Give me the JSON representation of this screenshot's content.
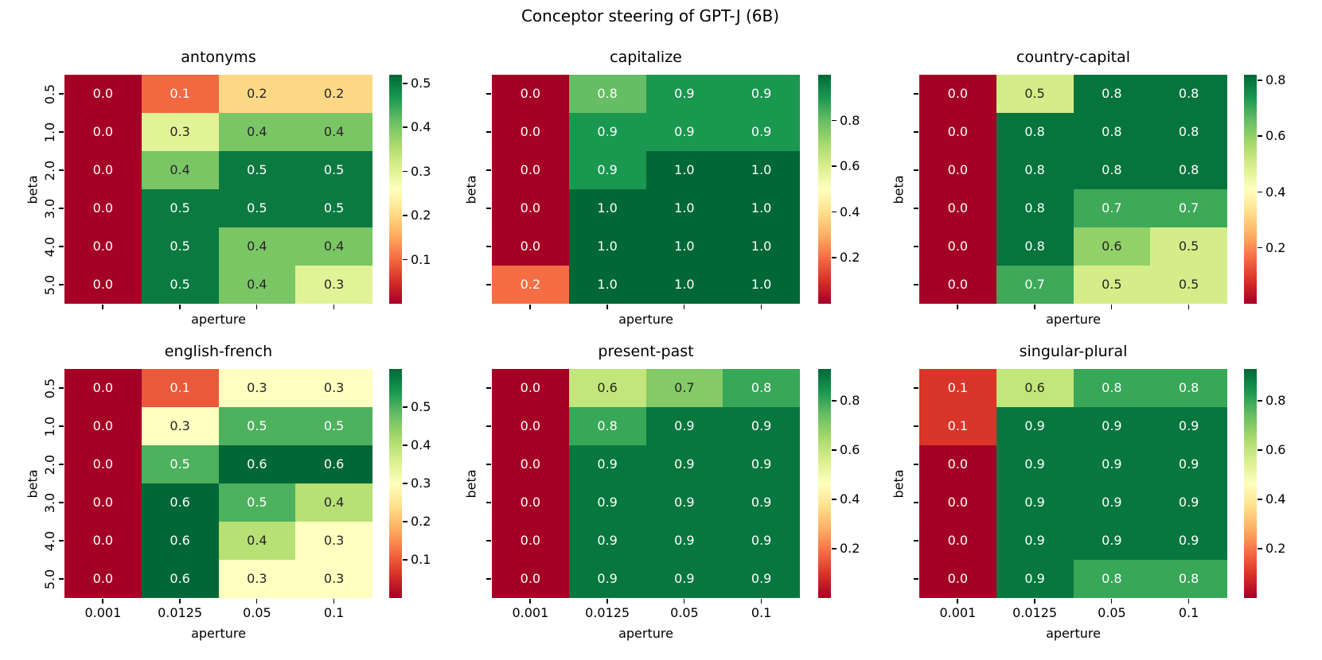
{
  "figure": {
    "title": "Conceptor steering of GPT-J (6B)"
  },
  "chart_data": [
    {
      "type": "heatmap",
      "title": "antonyms",
      "xlabel": "aperture",
      "ylabel": "beta",
      "x_ticks": [
        "0.001",
        "0.0125",
        "0.05",
        "0.1"
      ],
      "y_ticks": [
        "0.5",
        "1.0",
        "2.0",
        "3.0",
        "4.0",
        "5.0"
      ],
      "values": [
        [
          0.0,
          0.1,
          0.2,
          0.2
        ],
        [
          0.0,
          0.3,
          0.4,
          0.4
        ],
        [
          0.0,
          0.4,
          0.5,
          0.5
        ],
        [
          0.0,
          0.5,
          0.5,
          0.5
        ],
        [
          0.0,
          0.5,
          0.4,
          0.4
        ],
        [
          0.0,
          0.5,
          0.4,
          0.3
        ]
      ],
      "vmin": 0.0,
      "vmax": 0.52,
      "colorbar_ticks": [
        0.5,
        0.4,
        0.3,
        0.2,
        0.1
      ],
      "colormap": "RdYlGn"
    },
    {
      "type": "heatmap",
      "title": "capitalize",
      "xlabel": "aperture",
      "ylabel": "beta",
      "x_ticks": [
        "0.001",
        "0.0125",
        "0.05",
        "0.1"
      ],
      "y_ticks": [
        "0.5",
        "1.0",
        "2.0",
        "3.0",
        "4.0",
        "5.0"
      ],
      "values": [
        [
          0.0,
          0.8,
          0.9,
          0.9
        ],
        [
          0.0,
          0.9,
          0.9,
          0.9
        ],
        [
          0.0,
          0.9,
          1.0,
          1.0
        ],
        [
          0.0,
          1.0,
          1.0,
          1.0
        ],
        [
          0.0,
          1.0,
          1.0,
          1.0
        ],
        [
          0.2,
          1.0,
          1.0,
          1.0
        ]
      ],
      "vmin": 0.0,
      "vmax": 1.0,
      "colorbar_ticks": [
        0.8,
        0.6,
        0.4,
        0.2
      ],
      "colormap": "RdYlGn"
    },
    {
      "type": "heatmap",
      "title": "country-capital",
      "xlabel": "aperture",
      "ylabel": "beta",
      "x_ticks": [
        "0.001",
        "0.0125",
        "0.05",
        "0.1"
      ],
      "y_ticks": [
        "0.5",
        "1.0",
        "2.0",
        "3.0",
        "4.0",
        "5.0"
      ],
      "values": [
        [
          0.0,
          0.5,
          0.8,
          0.8
        ],
        [
          0.0,
          0.8,
          0.8,
          0.8
        ],
        [
          0.0,
          0.8,
          0.8,
          0.8
        ],
        [
          0.0,
          0.8,
          0.7,
          0.7
        ],
        [
          0.0,
          0.8,
          0.6,
          0.5
        ],
        [
          0.0,
          0.7,
          0.5,
          0.5
        ]
      ],
      "vmin": 0.0,
      "vmax": 0.82,
      "colorbar_ticks": [
        0.8,
        0.6,
        0.4,
        0.2
      ],
      "colormap": "RdYlGn"
    },
    {
      "type": "heatmap",
      "title": "english-french",
      "xlabel": "aperture",
      "ylabel": "beta",
      "x_ticks": [
        "0.001",
        "0.0125",
        "0.05",
        "0.1"
      ],
      "y_ticks": [
        "0.5",
        "1.0",
        "2.0",
        "3.0",
        "4.0",
        "5.0"
      ],
      "values": [
        [
          0.0,
          0.1,
          0.3,
          0.3
        ],
        [
          0.0,
          0.3,
          0.5,
          0.5
        ],
        [
          0.0,
          0.5,
          0.6,
          0.6
        ],
        [
          0.0,
          0.6,
          0.5,
          0.4
        ],
        [
          0.0,
          0.6,
          0.4,
          0.3
        ],
        [
          0.0,
          0.6,
          0.3,
          0.3
        ]
      ],
      "vmin": 0.0,
      "vmax": 0.6,
      "colorbar_ticks": [
        0.5,
        0.4,
        0.3,
        0.2,
        0.1
      ],
      "colormap": "RdYlGn"
    },
    {
      "type": "heatmap",
      "title": "present-past",
      "xlabel": "aperture",
      "ylabel": "beta",
      "x_ticks": [
        "0.001",
        "0.0125",
        "0.05",
        "0.1"
      ],
      "y_ticks": [
        "0.5",
        "1.0",
        "2.0",
        "3.0",
        "4.0",
        "5.0"
      ],
      "values": [
        [
          0.0,
          0.6,
          0.7,
          0.8
        ],
        [
          0.0,
          0.8,
          0.9,
          0.9
        ],
        [
          0.0,
          0.9,
          0.9,
          0.9
        ],
        [
          0.0,
          0.9,
          0.9,
          0.9
        ],
        [
          0.0,
          0.9,
          0.9,
          0.9
        ],
        [
          0.0,
          0.9,
          0.9,
          0.9
        ]
      ],
      "vmin": 0.0,
      "vmax": 0.93,
      "colorbar_ticks": [
        0.8,
        0.6,
        0.4,
        0.2
      ],
      "colormap": "RdYlGn"
    },
    {
      "type": "heatmap",
      "title": "singular-plural",
      "xlabel": "aperture",
      "ylabel": "beta",
      "x_ticks": [
        "0.001",
        "0.0125",
        "0.05",
        "0.1"
      ],
      "y_ticks": [
        "0.5",
        "1.0",
        "2.0",
        "3.0",
        "4.0",
        "5.0"
      ],
      "values": [
        [
          0.1,
          0.6,
          0.8,
          0.8
        ],
        [
          0.1,
          0.9,
          0.9,
          0.9
        ],
        [
          0.0,
          0.9,
          0.9,
          0.9
        ],
        [
          0.0,
          0.9,
          0.9,
          0.9
        ],
        [
          0.0,
          0.9,
          0.9,
          0.9
        ],
        [
          0.0,
          0.9,
          0.8,
          0.8
        ]
      ],
      "vmin": 0.0,
      "vmax": 0.93,
      "colorbar_ticks": [
        0.8,
        0.6,
        0.4,
        0.2
      ],
      "colormap": "RdYlGn"
    }
  ]
}
